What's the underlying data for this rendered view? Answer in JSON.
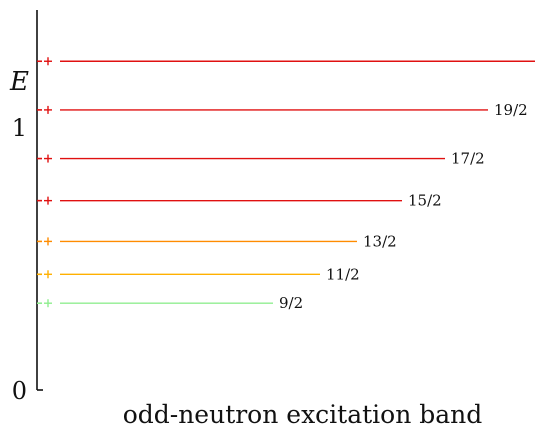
{
  "chart_data": {
    "type": "level-scheme",
    "y_axis_label": "E",
    "y_ticks": [
      "0",
      "1"
    ],
    "caption": "odd-neutron excitation band",
    "levels": [
      {
        "energy": 0.33,
        "spin_label": "9/2",
        "parity": "+",
        "color": "#90ee90"
      },
      {
        "energy": 0.44,
        "spin_label": "11/2",
        "parity": "+",
        "color": "#ffb000"
      },
      {
        "energy": 0.565,
        "spin_label": "13/2",
        "parity": "+",
        "color": "#ff8c00"
      },
      {
        "energy": 0.72,
        "spin_label": "15/2",
        "parity": "+",
        "color": "#e01010"
      },
      {
        "energy": 0.88,
        "spin_label": "17/2",
        "parity": "+",
        "color": "#e01010"
      },
      {
        "energy": 1.065,
        "spin_label": "19/2",
        "parity": "+",
        "color": "#e01010"
      },
      {
        "energy": 1.25,
        "spin_label": "",
        "parity": "+",
        "color": "#e01010"
      }
    ],
    "axis_color": "#111111"
  }
}
